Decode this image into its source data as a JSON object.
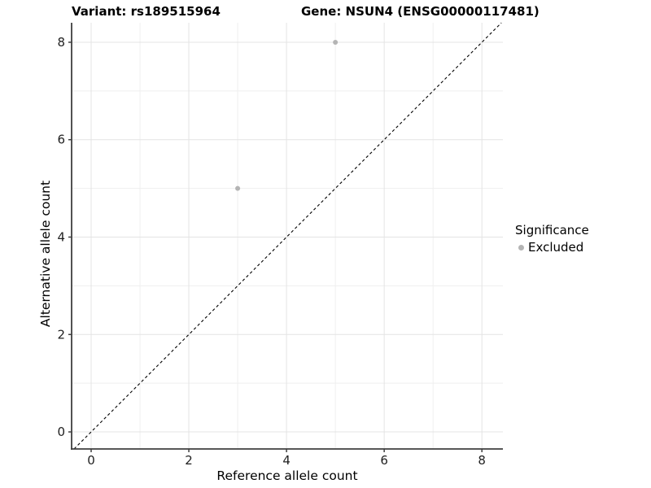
{
  "titles": {
    "variant": "Variant: rs189515964",
    "gene": "Gene: NSUN4 (ENSG00000117481)"
  },
  "legend": {
    "title": "Significance",
    "items": [
      {
        "label": "Excluded",
        "color": "#b4b4b4"
      }
    ]
  },
  "chart_data": {
    "type": "scatter",
    "title": "Variant: rs189515964 | Gene: NSUN4 (ENSG00000117481)",
    "xlabel": "Reference allele count",
    "ylabel": "Alternative allele count",
    "xlim": [
      -0.4,
      8.43
    ],
    "ylim": [
      -0.35,
      8.4
    ],
    "xticks": [
      0,
      2,
      4,
      6,
      8
    ],
    "yticks": [
      0,
      2,
      4,
      6,
      8
    ],
    "xticks_minor": [
      1,
      3,
      5,
      7
    ],
    "yticks_minor": [
      1,
      3,
      5,
      7
    ],
    "grid": true,
    "legend_position": "right",
    "series": [
      {
        "name": "Excluded",
        "color": "#b4b4b4",
        "points": [
          [
            3,
            5
          ],
          [
            5,
            8
          ]
        ]
      }
    ],
    "reference_line": {
      "type": "identity",
      "style": "dashed",
      "color": "#000000"
    }
  },
  "colors": {
    "grid_major": "#e4e4e4",
    "grid_minor": "#efefef",
    "axis_line": "#3f3f3f",
    "tick_mark": "#3f3f3f",
    "background": "#ffffff"
  }
}
